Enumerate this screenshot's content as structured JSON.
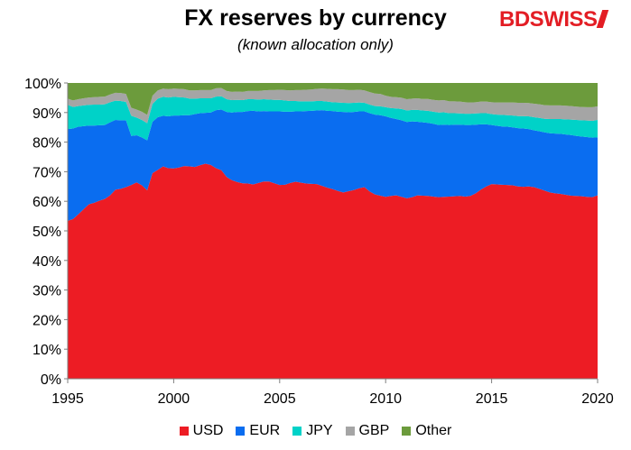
{
  "chart_data": {
    "type": "area",
    "stacked": true,
    "title": "FX reserves by currency",
    "subtitle": "(known allocation only)",
    "xlabel": "",
    "ylabel": "",
    "xlim": [
      1995,
      2020
    ],
    "ylim": [
      0,
      100
    ],
    "x_ticks": [
      "1995",
      "2000",
      "2005",
      "2010",
      "2015",
      "2020"
    ],
    "y_ticks": [
      "0%",
      "10%",
      "20%",
      "30%",
      "40%",
      "50%",
      "60%",
      "70%",
      "80%",
      "90%",
      "100%"
    ],
    "x": [
      1995.0,
      1995.25,
      1995.5,
      1995.75,
      1996.0,
      1996.25,
      1996.5,
      1996.75,
      1997.0,
      1997.25,
      1997.5,
      1997.75,
      1998.0,
      1998.25,
      1998.5,
      1998.75,
      1999.0,
      1999.25,
      1999.5,
      1999.75,
      2000.0,
      2000.25,
      2000.5,
      2000.75,
      2001.0,
      2001.25,
      2001.5,
      2001.75,
      2002.0,
      2002.25,
      2002.5,
      2002.75,
      2003.0,
      2003.25,
      2003.5,
      2003.75,
      2004.0,
      2004.25,
      2004.5,
      2004.75,
      2005.0,
      2005.25,
      2005.5,
      2005.75,
      2006.0,
      2006.25,
      2006.5,
      2006.75,
      2007.0,
      2007.25,
      2007.5,
      2007.75,
      2008.0,
      2008.25,
      2008.5,
      2008.75,
      2009.0,
      2009.25,
      2009.5,
      2009.75,
      2010.0,
      2010.25,
      2010.5,
      2010.75,
      2011.0,
      2011.25,
      2011.5,
      2011.75,
      2012.0,
      2012.25,
      2012.5,
      2012.75,
      2013.0,
      2013.25,
      2013.5,
      2013.75,
      2014.0,
      2014.25,
      2014.5,
      2014.75,
      2015.0,
      2015.25,
      2015.5,
      2015.75,
      2016.0,
      2016.25,
      2016.5,
      2016.75,
      2017.0,
      2017.25,
      2017.5,
      2017.75,
      2018.0,
      2018.25,
      2018.5,
      2018.75,
      2019.0,
      2019.25,
      2019.5,
      2019.75,
      2020.0
    ],
    "series": [
      {
        "name": "USD",
        "color": "#ed1c24",
        "values": [
          53.4,
          54.0,
          55.6,
          57.3,
          59.0,
          59.5,
          60.2,
          60.8,
          62.0,
          63.9,
          64.2,
          64.8,
          65.5,
          66.4,
          65.4,
          63.7,
          69.5,
          70.6,
          71.8,
          71.2,
          71.1,
          71.4,
          71.9,
          71.8,
          71.6,
          72.2,
          72.7,
          72.3,
          71.2,
          70.5,
          68.2,
          67.1,
          66.5,
          66.1,
          66.0,
          65.7,
          66.2,
          66.7,
          66.7,
          66.1,
          65.5,
          65.6,
          66.2,
          66.6,
          66.3,
          66.0,
          65.9,
          65.8,
          65.2,
          64.6,
          64.1,
          63.5,
          63.0,
          63.4,
          63.8,
          64.4,
          64.8,
          63.3,
          62.3,
          61.9,
          61.5,
          61.8,
          62.0,
          61.5,
          61.0,
          61.4,
          62.0,
          61.9,
          61.8,
          61.6,
          61.4,
          61.5,
          61.6,
          61.7,
          61.8,
          61.6,
          61.8,
          62.7,
          64.0,
          65.0,
          65.8,
          65.7,
          65.6,
          65.5,
          65.4,
          65.0,
          64.9,
          65.0,
          64.8,
          64.2,
          63.6,
          63.0,
          62.7,
          62.5,
          62.2,
          61.9,
          61.8,
          61.7,
          61.5,
          61.4,
          62.0
        ]
      },
      {
        "name": "EUR",
        "color": "#0a6df0",
        "values": [
          31.0,
          30.6,
          29.6,
          28.1,
          26.6,
          26.1,
          25.5,
          25.0,
          24.7,
          23.6,
          23.2,
          22.6,
          16.6,
          15.9,
          16.2,
          16.9,
          17.4,
          17.8,
          17.1,
          17.5,
          17.9,
          17.6,
          17.2,
          17.3,
          17.9,
          17.6,
          17.2,
          17.7,
          19.6,
          20.5,
          22.0,
          22.9,
          23.7,
          24.1,
          24.5,
          24.9,
          24.2,
          23.8,
          23.7,
          24.3,
          24.9,
          24.7,
          24.1,
          23.8,
          24.1,
          24.5,
          24.7,
          24.9,
          25.6,
          26.0,
          26.4,
          26.8,
          27.2,
          26.7,
          26.4,
          26.0,
          25.6,
          26.5,
          27.0,
          27.2,
          27.2,
          26.4,
          25.8,
          25.9,
          25.8,
          25.6,
          24.9,
          24.8,
          24.7,
          24.6,
          24.4,
          24.4,
          24.2,
          24.2,
          24.1,
          24.2,
          24.0,
          23.2,
          22.0,
          21.0,
          20.0,
          19.8,
          19.7,
          19.7,
          19.6,
          19.7,
          19.7,
          19.4,
          19.2,
          19.5,
          19.7,
          20.0,
          20.2,
          20.3,
          20.4,
          20.5,
          20.3,
          20.2,
          20.2,
          20.1,
          19.6
        ]
      },
      {
        "name": "JPY",
        "color": "#00d2c8",
        "values": [
          8.2,
          7.3,
          7.0,
          7.0,
          7.0,
          7.1,
          7.0,
          7.0,
          6.8,
          6.5,
          6.5,
          6.2,
          6.8,
          6.0,
          5.9,
          5.8,
          6.0,
          6.3,
          6.4,
          6.4,
          6.3,
          6.2,
          6.0,
          5.6,
          5.2,
          5.0,
          4.9,
          4.8,
          4.6,
          4.5,
          4.3,
          4.2,
          4.1,
          4.0,
          4.0,
          3.9,
          4.0,
          4.0,
          4.0,
          3.9,
          3.9,
          3.8,
          3.6,
          3.5,
          3.4,
          3.3,
          3.2,
          3.2,
          3.1,
          3.1,
          3.0,
          3.1,
          3.1,
          3.1,
          3.1,
          3.0,
          2.9,
          2.9,
          2.9,
          3.0,
          3.1,
          3.3,
          3.6,
          3.8,
          3.9,
          3.9,
          4.0,
          4.0,
          4.1,
          4.1,
          4.2,
          4.2,
          4.0,
          3.9,
          3.8,
          3.8,
          3.8,
          3.8,
          3.8,
          3.8,
          3.7,
          3.8,
          3.9,
          3.9,
          4.0,
          4.1,
          4.2,
          4.3,
          4.4,
          4.5,
          4.6,
          4.8,
          4.9,
          5.0,
          5.1,
          5.2,
          5.4,
          5.5,
          5.6,
          5.7,
          5.9
        ]
      },
      {
        "name": "GBP",
        "color": "#a5a5a5",
        "values": [
          2.1,
          2.2,
          2.3,
          2.4,
          2.5,
          2.5,
          2.6,
          2.6,
          2.6,
          2.7,
          2.7,
          2.7,
          2.7,
          2.7,
          2.8,
          2.8,
          2.8,
          2.8,
          2.8,
          2.8,
          2.8,
          2.8,
          2.8,
          2.8,
          2.8,
          2.8,
          2.8,
          2.8,
          2.8,
          2.8,
          2.8,
          2.8,
          2.8,
          2.8,
          2.8,
          2.8,
          2.9,
          3.0,
          3.2,
          3.3,
          3.4,
          3.5,
          3.6,
          3.7,
          3.8,
          3.9,
          4.0,
          4.1,
          4.2,
          4.3,
          4.4,
          4.5,
          4.5,
          4.4,
          4.3,
          4.3,
          4.2,
          4.2,
          4.2,
          4.2,
          3.9,
          3.8,
          3.8,
          3.8,
          3.8,
          3.8,
          3.9,
          3.9,
          4.0,
          4.0,
          4.1,
          4.1,
          4.0,
          4.0,
          4.0,
          3.9,
          3.8,
          3.8,
          3.9,
          3.9,
          4.0,
          4.1,
          4.2,
          4.3,
          4.4,
          4.5,
          4.5,
          4.5,
          4.6,
          4.6,
          4.6,
          4.6,
          4.6,
          4.6,
          4.6,
          4.6,
          4.5,
          4.5,
          4.5,
          4.6,
          4.6
        ]
      },
      {
        "name": "Other",
        "color": "#6c9b3c",
        "values": [
          5.3,
          5.9,
          5.5,
          5.2,
          4.9,
          4.8,
          4.7,
          4.6,
          3.9,
          3.3,
          3.4,
          3.7,
          8.4,
          9.0,
          9.7,
          10.8,
          4.3,
          2.5,
          1.9,
          2.1,
          1.9,
          2.0,
          2.1,
          2.5,
          2.5,
          2.4,
          2.4,
          2.4,
          1.8,
          1.7,
          2.7,
          3.0,
          2.9,
          3.0,
          2.7,
          2.7,
          2.7,
          2.5,
          2.4,
          2.4,
          2.3,
          2.4,
          2.5,
          2.4,
          2.4,
          2.3,
          2.2,
          2.0,
          1.9,
          2.0,
          2.1,
          2.1,
          2.2,
          2.4,
          2.4,
          2.3,
          2.5,
          3.1,
          3.6,
          3.7,
          4.3,
          4.7,
          4.8,
          5.0,
          5.5,
          5.3,
          5.2,
          5.4,
          5.4,
          5.7,
          5.9,
          5.8,
          6.2,
          6.2,
          6.3,
          6.5,
          6.6,
          6.5,
          6.3,
          6.3,
          6.5,
          6.6,
          6.6,
          6.6,
          6.6,
          6.7,
          6.7,
          6.8,
          7.0,
          7.2,
          7.5,
          7.6,
          7.6,
          7.6,
          7.7,
          7.8,
          8.0,
          8.1,
          8.2,
          8.2,
          7.9
        ]
      }
    ],
    "legend_position": "bottom",
    "grid": false
  },
  "brand": {
    "logo_text": "BDSWISS"
  }
}
